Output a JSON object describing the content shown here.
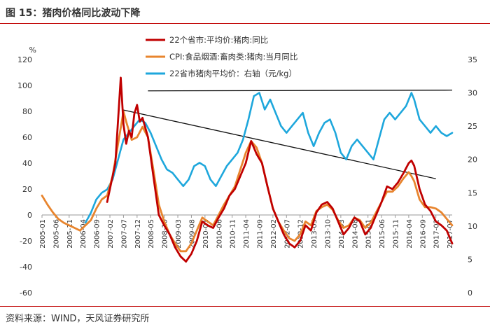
{
  "header": {
    "title": "图 15：猪肉价格同比波动下降"
  },
  "footer": {
    "source": "资料来源：WIND，天风证券研究所"
  },
  "colors": {
    "accent": "#c00000",
    "series_red": "#c00000",
    "series_orange": "#e8852e",
    "series_blue": "#1ea7dc",
    "trendline": "#111111"
  },
  "chart_data": {
    "type": "line",
    "left_axis": {
      "unit_label": "%",
      "ylim": [
        -60,
        120
      ],
      "ticks": [
        -60,
        -40,
        -20,
        0,
        20,
        40,
        60,
        80,
        100,
        120
      ]
    },
    "right_axis": {
      "ylim": [
        0,
        35
      ],
      "ticks": [
        0,
        5,
        10,
        15,
        20,
        25,
        30,
        35
      ]
    },
    "x_range": [
      "2005-01",
      "2017-08"
    ],
    "x_tick_labels": [
      "2005-01",
      "2005-06",
      "2005-11",
      "2006-04",
      "2006-09",
      "2007-02",
      "2007-07",
      "2007-12",
      "2008-05",
      "2008-10",
      "2009-03",
      "2009-08",
      "2010-01",
      "2010-06",
      "2010-11",
      "2011-04",
      "2011-09",
      "2012-02",
      "2012-07",
      "2012-12",
      "2013-05",
      "2013-10",
      "2014-03",
      "2014-08",
      "2015-01",
      "2015-06",
      "2015-11",
      "2016-04",
      "2016-09",
      "2017-02",
      "2017-07"
    ],
    "legend_position": "top",
    "grid": false,
    "series": [
      {
        "name": "22个省市:平均价:猪肉:同比",
        "axis": "left",
        "color": "#c00000",
        "points": [
          [
            "2007-01",
            10
          ],
          [
            "2007-04",
            40
          ],
          [
            "2007-06",
            106
          ],
          [
            "2007-07",
            70
          ],
          [
            "2007-08",
            55
          ],
          [
            "2007-09",
            65
          ],
          [
            "2007-10",
            60
          ],
          [
            "2007-11",
            78
          ],
          [
            "2007-12",
            85
          ],
          [
            "2008-01",
            72
          ],
          [
            "2008-02",
            75
          ],
          [
            "2008-04",
            60
          ],
          [
            "2008-06",
            30
          ],
          [
            "2008-08",
            0
          ],
          [
            "2008-10",
            -8
          ],
          [
            "2008-12",
            -15
          ],
          [
            "2009-02",
            -25
          ],
          [
            "2009-04",
            -32
          ],
          [
            "2009-06",
            -36
          ],
          [
            "2009-08",
            -30
          ],
          [
            "2009-10",
            -20
          ],
          [
            "2009-12",
            -5
          ],
          [
            "2010-02",
            -8
          ],
          [
            "2010-04",
            -10
          ],
          [
            "2010-06",
            -2
          ],
          [
            "2010-08",
            5
          ],
          [
            "2010-10",
            15
          ],
          [
            "2010-12",
            20
          ],
          [
            "2011-02",
            30
          ],
          [
            "2011-04",
            40
          ],
          [
            "2011-06",
            57
          ],
          [
            "2011-07",
            52
          ],
          [
            "2011-08",
            47
          ],
          [
            "2011-10",
            40
          ],
          [
            "2011-12",
            22
          ],
          [
            "2012-02",
            5
          ],
          [
            "2012-04",
            -5
          ],
          [
            "2012-06",
            -15
          ],
          [
            "2012-08",
            -22
          ],
          [
            "2012-10",
            -25
          ],
          [
            "2012-12",
            -20
          ],
          [
            "2013-02",
            -8
          ],
          [
            "2013-04",
            -12
          ],
          [
            "2013-06",
            2
          ],
          [
            "2013-08",
            8
          ],
          [
            "2013-10",
            10
          ],
          [
            "2013-12",
            5
          ],
          [
            "2014-02",
            -5
          ],
          [
            "2014-04",
            -15
          ],
          [
            "2014-06",
            -10
          ],
          [
            "2014-08",
            -2
          ],
          [
            "2014-10",
            -5
          ],
          [
            "2014-12",
            -15
          ],
          [
            "2015-02",
            -10
          ],
          [
            "2015-04",
            0
          ],
          [
            "2015-06",
            10
          ],
          [
            "2015-08",
            22
          ],
          [
            "2015-10",
            20
          ],
          [
            "2015-12",
            25
          ],
          [
            "2016-02",
            32
          ],
          [
            "2016-04",
            40
          ],
          [
            "2016-05",
            42
          ],
          [
            "2016-06",
            38
          ],
          [
            "2016-08",
            20
          ],
          [
            "2016-10",
            8
          ],
          [
            "2016-12",
            3
          ],
          [
            "2017-02",
            -5
          ],
          [
            "2017-04",
            -8
          ],
          [
            "2017-06",
            -12
          ],
          [
            "2017-08",
            -22
          ]
        ]
      },
      {
        "name": "CPI:食品烟酒:畜肉类:猪肉:当月同比",
        "axis": "left",
        "color": "#e8852e",
        "points": [
          [
            "2005-01",
            15
          ],
          [
            "2005-03",
            8
          ],
          [
            "2005-05",
            2
          ],
          [
            "2005-07",
            -3
          ],
          [
            "2005-09",
            -6
          ],
          [
            "2005-11",
            -8
          ],
          [
            "2006-01",
            -10
          ],
          [
            "2006-03",
            -12
          ],
          [
            "2006-05",
            -8
          ],
          [
            "2006-07",
            -4
          ],
          [
            "2006-09",
            5
          ],
          [
            "2006-11",
            12
          ],
          [
            "2007-01",
            15
          ],
          [
            "2007-03",
            30
          ],
          [
            "2007-05",
            55
          ],
          [
            "2007-07",
            80
          ],
          [
            "2007-08",
            72
          ],
          [
            "2007-10",
            58
          ],
          [
            "2007-12",
            60
          ],
          [
            "2008-02",
            68
          ],
          [
            "2008-04",
            60
          ],
          [
            "2008-06",
            35
          ],
          [
            "2008-08",
            8
          ],
          [
            "2008-10",
            -5
          ],
          [
            "2008-12",
            -15
          ],
          [
            "2009-02",
            -22
          ],
          [
            "2009-04",
            -28
          ],
          [
            "2009-06",
            -28
          ],
          [
            "2009-08",
            -22
          ],
          [
            "2009-10",
            -12
          ],
          [
            "2009-12",
            -2
          ],
          [
            "2010-02",
            -5
          ],
          [
            "2010-04",
            -8
          ],
          [
            "2010-06",
            0
          ],
          [
            "2010-08",
            8
          ],
          [
            "2010-10",
            15
          ],
          [
            "2010-12",
            22
          ],
          [
            "2011-02",
            35
          ],
          [
            "2011-04",
            48
          ],
          [
            "2011-06",
            57
          ],
          [
            "2011-08",
            52
          ],
          [
            "2011-10",
            40
          ],
          [
            "2011-12",
            22
          ],
          [
            "2012-02",
            5
          ],
          [
            "2012-04",
            -5
          ],
          [
            "2012-06",
            -12
          ],
          [
            "2012-08",
            -18
          ],
          [
            "2012-10",
            -20
          ],
          [
            "2012-12",
            -15
          ],
          [
            "2013-02",
            -5
          ],
          [
            "2013-04",
            -8
          ],
          [
            "2013-06",
            3
          ],
          [
            "2013-08",
            6
          ],
          [
            "2013-10",
            8
          ],
          [
            "2013-12",
            4
          ],
          [
            "2014-02",
            -4
          ],
          [
            "2014-04",
            -10
          ],
          [
            "2014-06",
            -8
          ],
          [
            "2014-08",
            -2
          ],
          [
            "2014-10",
            -4
          ],
          [
            "2014-12",
            -10
          ],
          [
            "2015-02",
            -6
          ],
          [
            "2015-04",
            2
          ],
          [
            "2015-06",
            10
          ],
          [
            "2015-08",
            18
          ],
          [
            "2015-10",
            18
          ],
          [
            "2015-12",
            22
          ],
          [
            "2016-02",
            28
          ],
          [
            "2016-04",
            33
          ],
          [
            "2016-05",
            30
          ],
          [
            "2016-06",
            26
          ],
          [
            "2016-08",
            12
          ],
          [
            "2016-10",
            6
          ],
          [
            "2016-12",
            6
          ],
          [
            "2017-02",
            5
          ],
          [
            "2017-04",
            2
          ],
          [
            "2017-06",
            -3
          ],
          [
            "2017-08",
            -8
          ]
        ]
      },
      {
        "name": "22省市猪肉平均价：右轴（元/kg）",
        "axis": "right",
        "color": "#1ea7dc",
        "points": [
          [
            "2006-05",
            10.5
          ],
          [
            "2006-07",
            12
          ],
          [
            "2006-09",
            14
          ],
          [
            "2006-11",
            15
          ],
          [
            "2007-01",
            15.5
          ],
          [
            "2007-03",
            17
          ],
          [
            "2007-05",
            20
          ],
          [
            "2007-07",
            23
          ],
          [
            "2007-09",
            24
          ],
          [
            "2007-11",
            25
          ],
          [
            "2008-01",
            26
          ],
          [
            "2008-03",
            25.5
          ],
          [
            "2008-05",
            24
          ],
          [
            "2008-07",
            22
          ],
          [
            "2008-09",
            20
          ],
          [
            "2008-11",
            18.5
          ],
          [
            "2009-01",
            18
          ],
          [
            "2009-03",
            17
          ],
          [
            "2009-05",
            16
          ],
          [
            "2009-07",
            17
          ],
          [
            "2009-09",
            19
          ],
          [
            "2009-11",
            19.5
          ],
          [
            "2010-01",
            19
          ],
          [
            "2010-03",
            17
          ],
          [
            "2010-05",
            16
          ],
          [
            "2010-07",
            17.5
          ],
          [
            "2010-09",
            19
          ],
          [
            "2010-11",
            20
          ],
          [
            "2011-01",
            21
          ],
          [
            "2011-03",
            23
          ],
          [
            "2011-05",
            26
          ],
          [
            "2011-07",
            29.5
          ],
          [
            "2011-09",
            30
          ],
          [
            "2011-11",
            27.5
          ],
          [
            "2012-01",
            29
          ],
          [
            "2012-03",
            27
          ],
          [
            "2012-05",
            25
          ],
          [
            "2012-07",
            24
          ],
          [
            "2012-09",
            25
          ],
          [
            "2012-11",
            26
          ],
          [
            "2013-01",
            27
          ],
          [
            "2013-03",
            24
          ],
          [
            "2013-05",
            22
          ],
          [
            "2013-07",
            24
          ],
          [
            "2013-09",
            25.5
          ],
          [
            "2013-11",
            26
          ],
          [
            "2014-01",
            24
          ],
          [
            "2014-03",
            21
          ],
          [
            "2014-05",
            20
          ],
          [
            "2014-07",
            22
          ],
          [
            "2014-09",
            23
          ],
          [
            "2014-11",
            22
          ],
          [
            "2015-01",
            21
          ],
          [
            "2015-03",
            20
          ],
          [
            "2015-05",
            23
          ],
          [
            "2015-07",
            26
          ],
          [
            "2015-09",
            27
          ],
          [
            "2015-11",
            26
          ],
          [
            "2016-01",
            27
          ],
          [
            "2016-03",
            28
          ],
          [
            "2016-05",
            30
          ],
          [
            "2016-06",
            29
          ],
          [
            "2016-08",
            26
          ],
          [
            "2016-10",
            25
          ],
          [
            "2016-12",
            24
          ],
          [
            "2017-02",
            25
          ],
          [
            "2017-04",
            24
          ],
          [
            "2017-06",
            23.5
          ],
          [
            "2017-08",
            24
          ]
        ]
      }
    ],
    "trend_lines": [
      {
        "axis": "right",
        "from": [
          "2008-04",
          30.3
        ],
        "to": [
          "2017-08",
          30.4
        ]
      },
      {
        "axis": "left",
        "from": [
          "2007-07",
          81
        ],
        "to": [
          "2017-02",
          28
        ]
      }
    ]
  }
}
